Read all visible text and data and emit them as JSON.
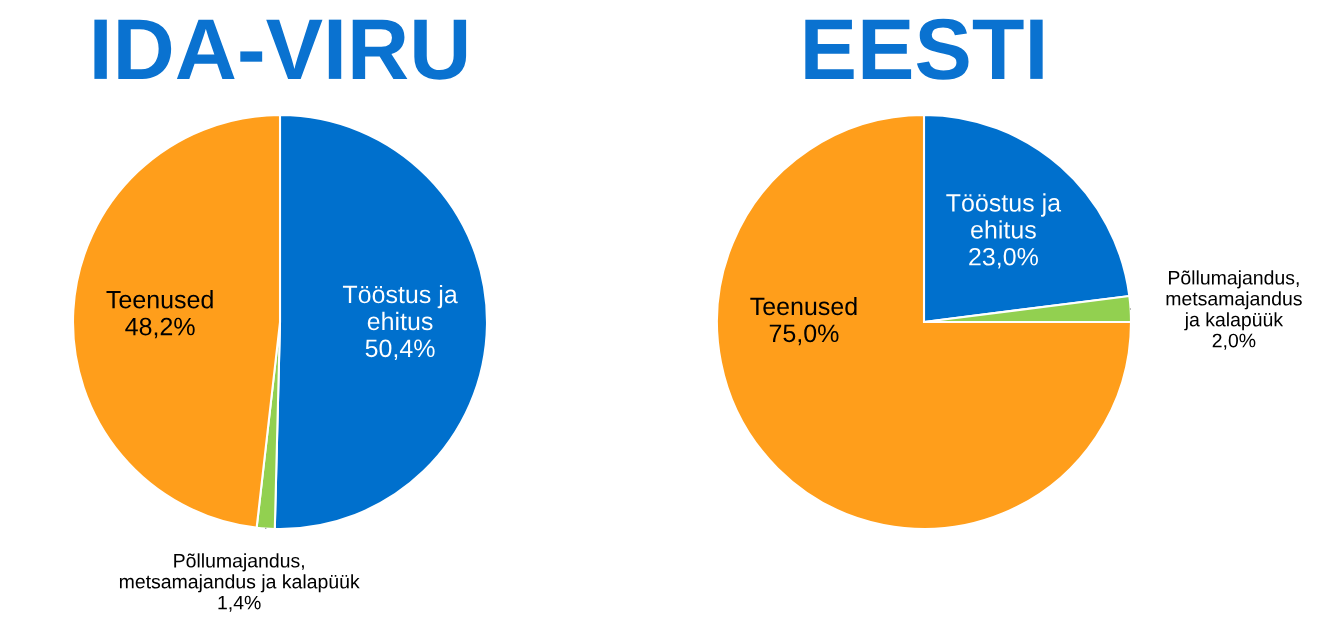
{
  "chart_data": [
    {
      "type": "pie",
      "title": "IDA-VIRU",
      "categories": [
        "Tööstus ja ehitus",
        "Põllumajandus, metsamajandus ja kalapüük",
        "Teenused"
      ],
      "values": [
        50.4,
        1.4,
        48.2
      ],
      "colors": [
        "#0070cd",
        "#92d050",
        "#ff9e1b"
      ],
      "value_labels": [
        "50,4%",
        "1,4%",
        "48,2%"
      ]
    },
    {
      "type": "pie",
      "title": "EESTI",
      "categories": [
        "Tööstus ja ehitus",
        "Põllumajandus, metsamajandus ja kalapüük",
        "Teenused"
      ],
      "values": [
        23.0,
        2.0,
        75.0
      ],
      "colors": [
        "#0070cd",
        "#92d050",
        "#ff9e1b"
      ],
      "value_labels": [
        "23,0%",
        "2,0%",
        "75,0%"
      ]
    }
  ]
}
